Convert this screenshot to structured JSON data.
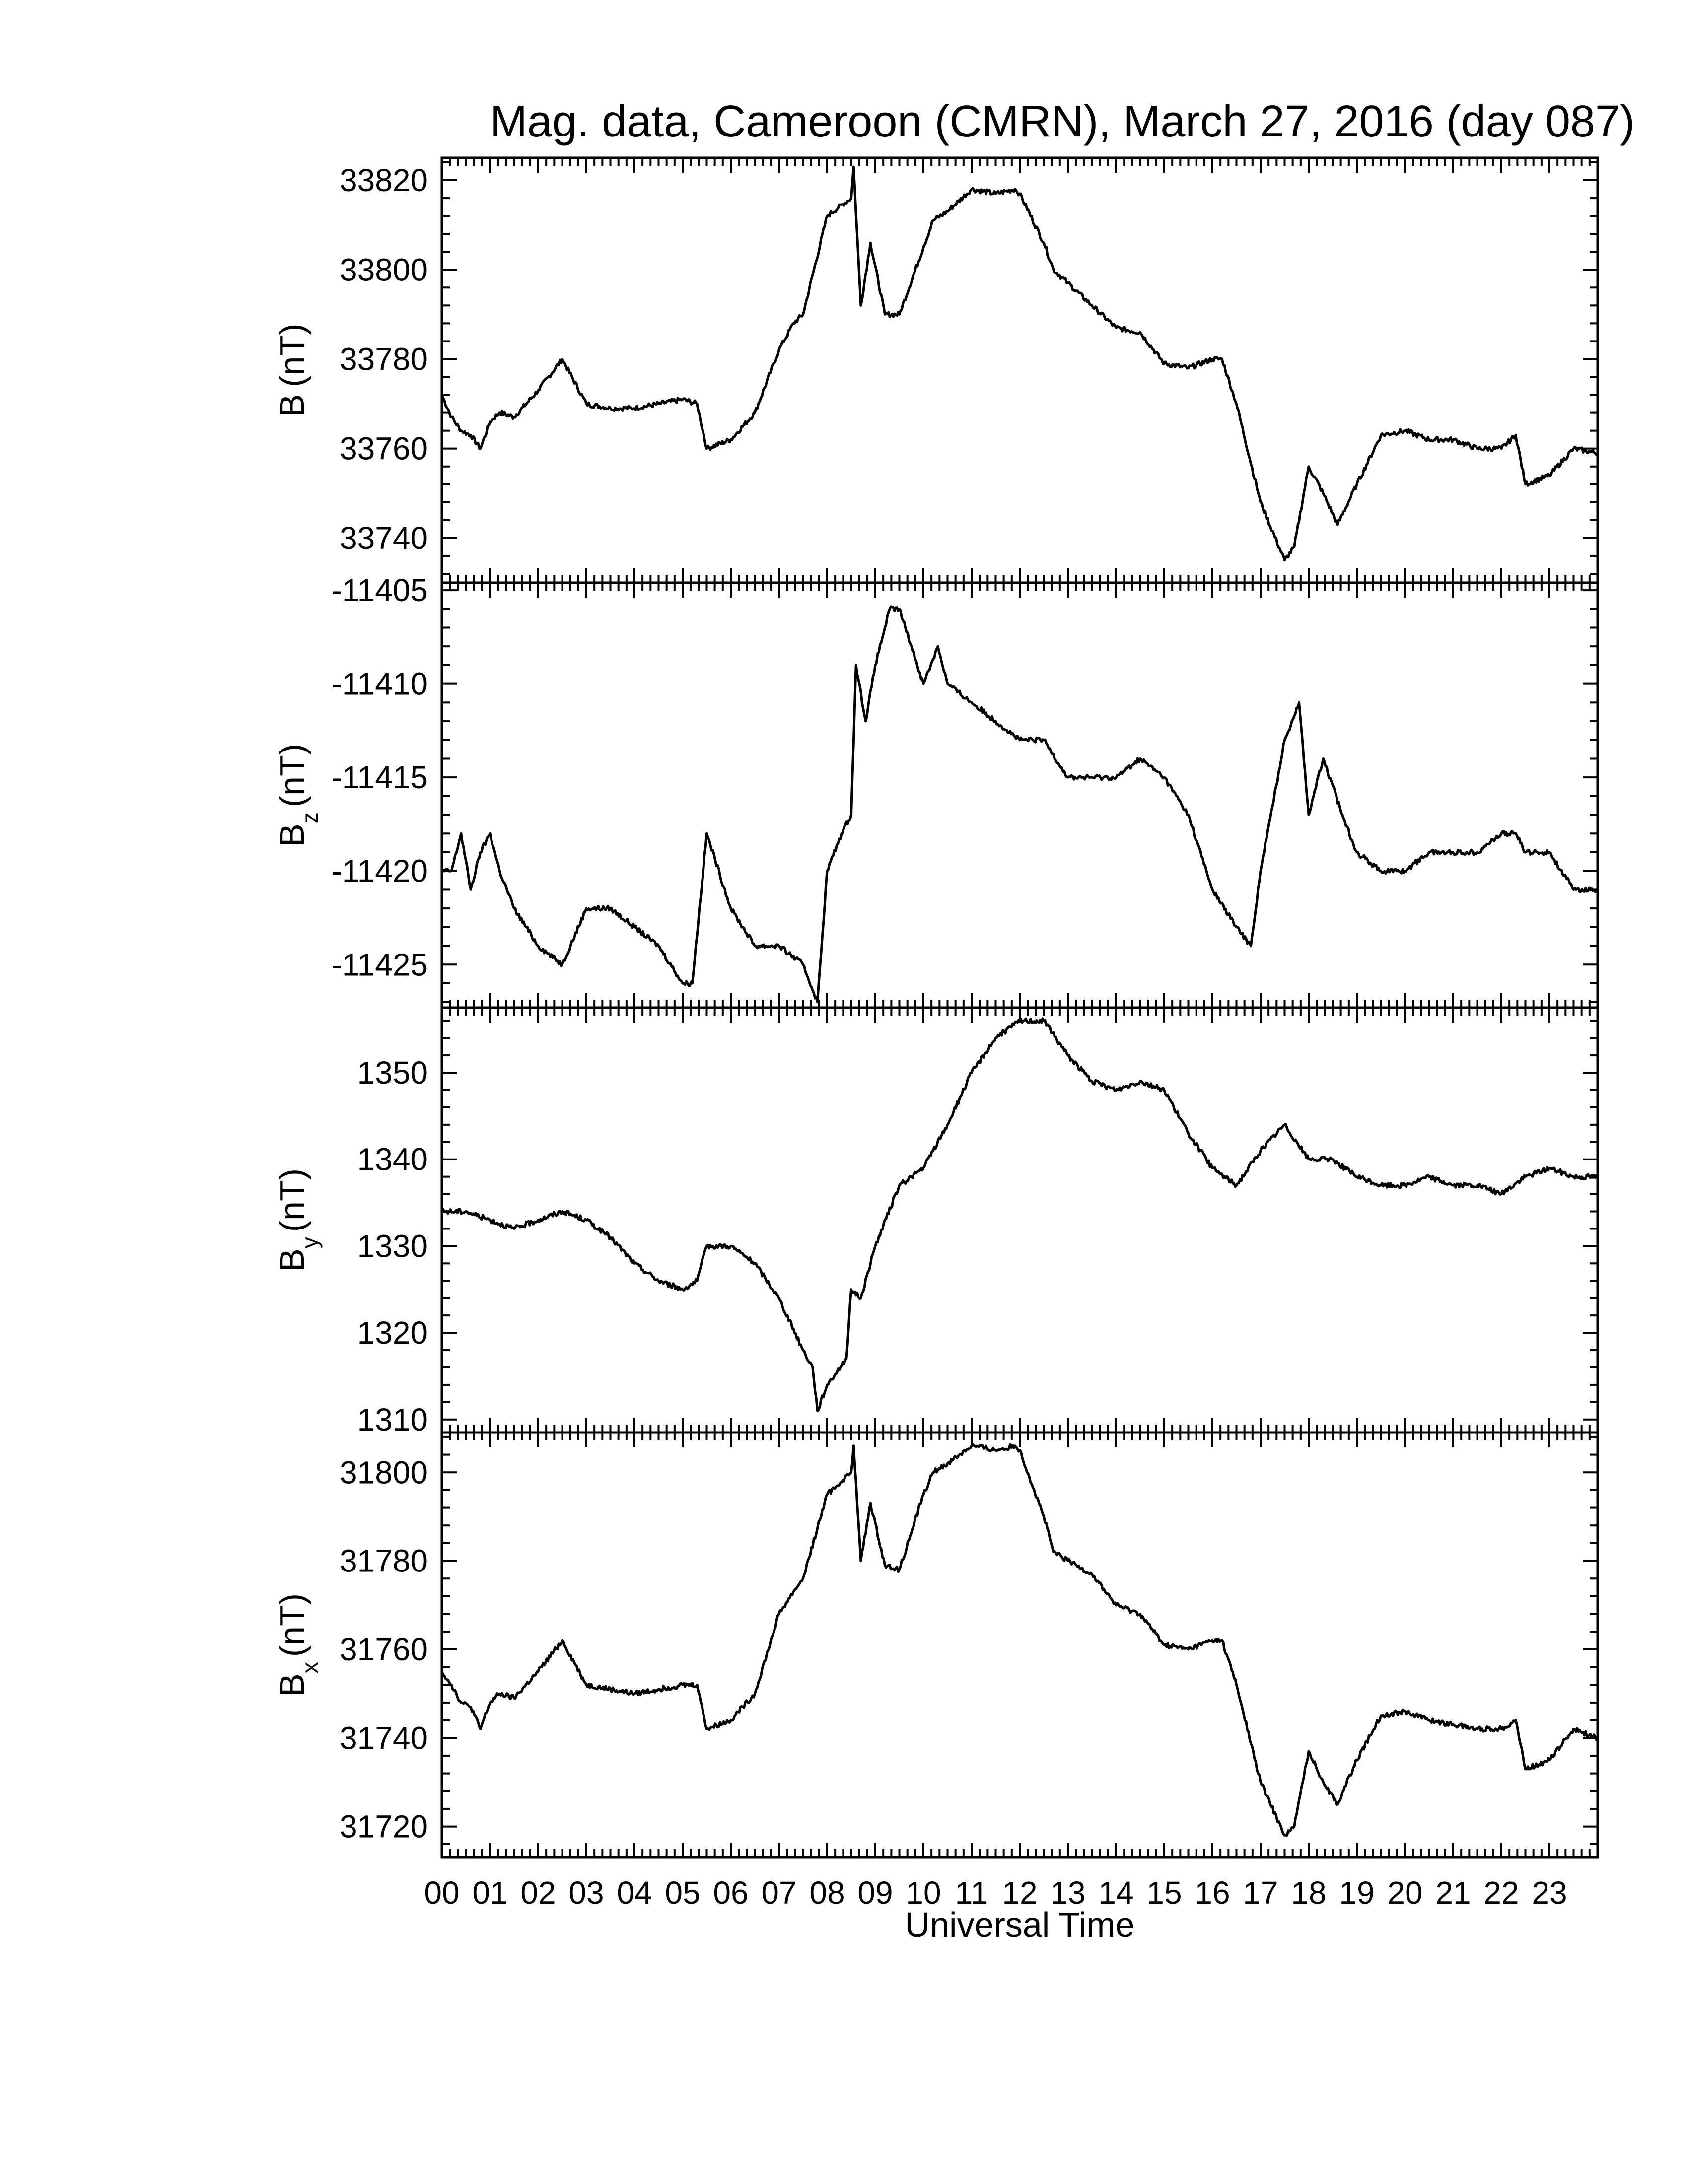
{
  "figure": {
    "title": "Mag. data, Cameroon (CMRN), March 27, 2016 (day 087)"
  },
  "chart_data": [
    {
      "type": "line",
      "panel": "B",
      "ylabel": "B (nT)",
      "ylabel_main": "B",
      "ylabel_sub": "",
      "ylabel_unit": "(nT)",
      "ylim": [
        33730,
        33825
      ],
      "yticks": [
        33740,
        33760,
        33780,
        33800,
        33820
      ],
      "xlim": [
        0,
        24
      ],
      "x": [
        0,
        0.2,
        0.4,
        0.6,
        0.8,
        1.0,
        1.2,
        1.5,
        2.0,
        2.5,
        3.0,
        3.5,
        4.0,
        4.5,
        5.0,
        5.3,
        5.5,
        6.0,
        6.5,
        7.0,
        7.3,
        7.5,
        8.0,
        8.5,
        8.55,
        8.7,
        8.9,
        9.2,
        9.5,
        10.0,
        10.2,
        10.5,
        11.0,
        11.5,
        11.9,
        12.0,
        12.5,
        12.7,
        13.0,
        13.5,
        14.0,
        14.5,
        15.0,
        15.5,
        16.0,
        16.2,
        16.5,
        17.0,
        17.5,
        17.7,
        18.0,
        18.3,
        18.6,
        19.0,
        19.5,
        20.0,
        20.5,
        21.0,
        21.5,
        22.0,
        22.3,
        22.5,
        23.0,
        23.5,
        24.0
      ],
      "values": [
        33772,
        33767,
        33764,
        33763,
        33760,
        33766,
        33768,
        33767,
        33773,
        33780,
        33770,
        33769,
        33769,
        33770,
        33771,
        33770,
        33760,
        33762,
        33768,
        33782,
        33788,
        33790,
        33812,
        33816,
        33823,
        33792,
        33806,
        33790,
        33790,
        33805,
        33811,
        33813,
        33818,
        33817,
        33818,
        33817,
        33806,
        33800,
        33797,
        33792,
        33787,
        33786,
        33779,
        33778,
        33780,
        33780,
        33770,
        33748,
        33735,
        33738,
        33756,
        33750,
        33743,
        33752,
        33763,
        33764,
        33762,
        33762,
        33760,
        33760,
        33763,
        33752,
        33754,
        33760,
        33759
      ]
    },
    {
      "type": "line",
      "panel": "Bz",
      "ylabel": "Bz (nT)",
      "ylabel_main": "B",
      "ylabel_sub": "z",
      "ylabel_unit": "(nT)",
      "ylim": [
        -11427.3,
        -11404.6
      ],
      "yticks": [
        -11405,
        -11410,
        -11415,
        -11420,
        -11425
      ],
      "xlim": [
        0,
        24
      ],
      "x": [
        0,
        0.2,
        0.4,
        0.6,
        0.8,
        1.0,
        1.2,
        1.5,
        2.0,
        2.5,
        3.0,
        3.5,
        4.0,
        4.5,
        5.0,
        5.2,
        5.5,
        6.0,
        6.5,
        7.0,
        7.5,
        7.8,
        8.0,
        8.3,
        8.5,
        8.6,
        8.8,
        9.0,
        9.3,
        9.5,
        10.0,
        10.3,
        10.5,
        11.0,
        11.5,
        12.0,
        12.5,
        13.0,
        13.5,
        14.0,
        14.5,
        15.0,
        15.5,
        16.0,
        16.5,
        16.8,
        17.0,
        17.5,
        17.8,
        18.0,
        18.3,
        18.7,
        19.0,
        19.5,
        20.0,
        20.5,
        21.0,
        21.5,
        22.0,
        22.3,
        22.5,
        23.0,
        23.5,
        24.0
      ],
      "values": [
        -11420,
        -11420,
        -11418,
        -11421,
        -11419,
        -11418,
        -11420,
        -11422,
        -11424,
        -11425,
        -11422,
        -11422,
        -11423,
        -11424,
        -11426,
        -11426,
        -11418,
        -11422,
        -11424,
        -11424,
        -11425,
        -11427,
        -11420,
        -11418,
        -11417,
        -11409,
        -11412,
        -11409,
        -11406,
        -11406,
        -11410,
        -11408,
        -11410,
        -11411,
        -11412,
        -11413,
        -11413,
        -11415,
        -11415,
        -11415,
        -11414,
        -11415,
        -11417,
        -11421,
        -11423,
        -11424,
        -11420,
        -11413,
        -11411,
        -11417,
        -11414,
        -11417,
        -11419,
        -11420,
        -11420,
        -11419,
        -11419,
        -11419,
        -11418,
        -11418,
        -11419,
        -11419,
        -11421,
        -11421
      ]
    },
    {
      "type": "line",
      "panel": "By",
      "ylabel": "By (nT)",
      "ylabel_main": "B",
      "ylabel_sub": "y",
      "ylabel_unit": "(nT)",
      "ylim": [
        1308.5,
        1357.5
      ],
      "yticks": [
        1310,
        1320,
        1330,
        1340,
        1350
      ],
      "xlim": [
        0,
        24
      ],
      "x": [
        0,
        0.5,
        1.0,
        1.5,
        2.0,
        2.5,
        3.0,
        3.5,
        4.0,
        4.5,
        5.0,
        5.3,
        5.5,
        6.0,
        6.5,
        7.0,
        7.5,
        7.7,
        7.8,
        8.0,
        8.4,
        8.5,
        8.7,
        9.0,
        9.5,
        10.0,
        10.5,
        11.0,
        11.5,
        12.0,
        12.5,
        13.0,
        13.5,
        14.0,
        14.5,
        15.0,
        15.5,
        16.0,
        16.5,
        17.0,
        17.5,
        18.0,
        18.5,
        19.0,
        19.5,
        20.0,
        20.5,
        21.0,
        21.5,
        22.0,
        22.5,
        23.0,
        23.5,
        24.0
      ],
      "values": [
        1334,
        1334,
        1333,
        1332,
        1333,
        1334,
        1333,
        1331,
        1328,
        1326,
        1325,
        1326,
        1330,
        1330,
        1328,
        1324,
        1318,
        1316,
        1311,
        1314,
        1317,
        1325,
        1324,
        1330,
        1337,
        1339,
        1344,
        1350,
        1354,
        1356,
        1356,
        1352,
        1349,
        1348,
        1349,
        1348,
        1343,
        1339,
        1337,
        1341,
        1344,
        1340,
        1340,
        1338,
        1337,
        1337,
        1338,
        1337,
        1337,
        1336,
        1338,
        1339,
        1338,
        1338
      ]
    },
    {
      "type": "line",
      "panel": "Bx",
      "ylabel": "Bx (nT)",
      "ylabel_main": "B",
      "ylabel_sub": "x",
      "ylabel_unit": "(nT)",
      "ylim": [
        31713,
        31809
      ],
      "yticks": [
        31720,
        31740,
        31760,
        31780,
        31800
      ],
      "xlim": [
        0,
        24
      ],
      "x": [
        0,
        0.2,
        0.4,
        0.6,
        0.8,
        1.0,
        1.2,
        1.5,
        2.0,
        2.5,
        3.0,
        3.5,
        4.0,
        4.5,
        5.0,
        5.3,
        5.5,
        6.0,
        6.5,
        7.0,
        7.3,
        7.5,
        8.0,
        8.5,
        8.55,
        8.7,
        8.9,
        9.2,
        9.5,
        10.0,
        10.2,
        10.5,
        11.0,
        11.5,
        11.9,
        12.0,
        12.5,
        12.7,
        13.0,
        13.5,
        14.0,
        14.5,
        15.0,
        15.5,
        16.0,
        16.2,
        16.5,
        17.0,
        17.5,
        17.7,
        18.0,
        18.3,
        18.6,
        19.0,
        19.5,
        20.0,
        20.5,
        21.0,
        21.5,
        22.0,
        22.3,
        22.5,
        23.0,
        23.5,
        24.0
      ],
      "values": [
        31755,
        31752,
        31748,
        31747,
        31742,
        31748,
        31750,
        31749,
        31755,
        31762,
        31752,
        31751,
        31750,
        31751,
        31752,
        31752,
        31742,
        31744,
        31750,
        31768,
        31773,
        31776,
        31795,
        31800,
        31806,
        31780,
        31793,
        31779,
        31778,
        31795,
        31800,
        31802,
        31806,
        31805,
        31806,
        31805,
        31790,
        31782,
        31780,
        31777,
        31770,
        31768,
        31761,
        31760,
        31762,
        31762,
        31752,
        31730,
        31718,
        31720,
        31737,
        31730,
        31725,
        31735,
        31745,
        31746,
        31744,
        31743,
        31742,
        31742,
        31744,
        31733,
        31735,
        31742,
        31740
      ]
    }
  ],
  "x_axis": {
    "label": "Universal Time",
    "tick_labels": [
      "00",
      "01",
      "02",
      "03",
      "04",
      "05",
      "06",
      "07",
      "08",
      "09",
      "10",
      "11",
      "12",
      "13",
      "14",
      "15",
      "16",
      "17",
      "18",
      "19",
      "20",
      "21",
      "22",
      "23"
    ]
  }
}
